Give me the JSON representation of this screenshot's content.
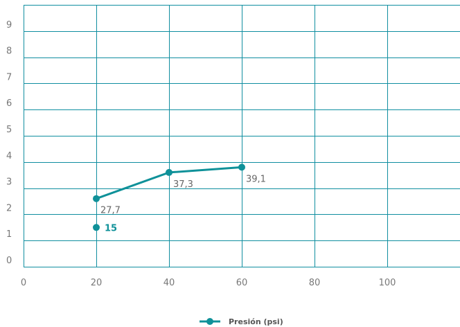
{
  "colors": {
    "grid": "#0f8ea0",
    "series": "#0f9199",
    "tick_text": "#777777",
    "data_label": "#666666",
    "standalone_label": "#0f9199"
  },
  "chart_data": {
    "type": "line",
    "title": "",
    "xlabel": "",
    "ylabel": "",
    "xlim": [
      0,
      120
    ],
    "ylim": [
      0,
      10
    ],
    "x_ticks": [
      "0",
      "20",
      "40",
      "60",
      "80",
      "100"
    ],
    "y_ticks": [
      "0",
      "1",
      "2",
      "3",
      "4",
      "5",
      "6",
      "7",
      "8",
      "9"
    ],
    "grid": true,
    "legend_position": "bottom-center",
    "series": [
      {
        "name": "Presión (psi)",
        "color": "#0f9199",
        "points": [
          {
            "x": 20,
            "y": 2.6,
            "label": "27,7"
          },
          {
            "x": 40,
            "y": 3.6,
            "label": "37,3"
          },
          {
            "x": 60,
            "y": 3.8,
            "label": "39,1"
          }
        ]
      }
    ],
    "standalone_points": [
      {
        "x": 20,
        "y": 1.5,
        "label": "15",
        "color": "#0f9199"
      }
    ]
  }
}
